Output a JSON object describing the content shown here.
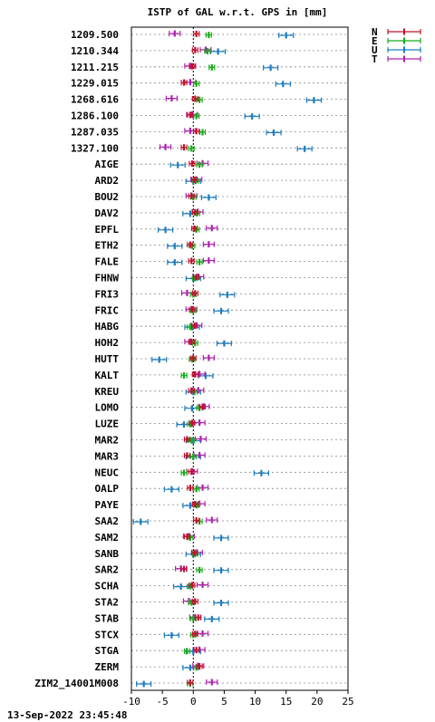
{
  "chart_data": {
    "type": "scatter",
    "title": "ISTP of GAL w.r.t. GPS in [mm]",
    "footer": "13-Sep-2022 23:45:48",
    "xlim": [
      -10,
      25
    ],
    "xticks": [
      -10,
      -5,
      0,
      5,
      10,
      15,
      20,
      25
    ],
    "grid": true,
    "legend_position": "top-right",
    "series": [
      {
        "name": "N",
        "color": "#c0102a"
      },
      {
        "name": "E",
        "color": "#1aaa1a"
      },
      {
        "name": "U",
        "color": "#1a7ec0"
      },
      {
        "name": "T",
        "color": "#b020b0"
      }
    ],
    "stations": [
      {
        "label": "1209.500",
        "N": 0.5,
        "E": 2.5,
        "U": 15.0,
        "T": -3.0
      },
      {
        "label": "1210.344",
        "N": 0.3,
        "E": 2.3,
        "U": 4.0,
        "T": 2.0
      },
      {
        "label": "1211.215",
        "N": -0.2,
        "E": 3.0,
        "U": 12.5,
        "T": -0.5
      },
      {
        "label": "1229.015",
        "N": -1.5,
        "E": 0.5,
        "U": 14.5,
        "T": -0.5
      },
      {
        "label": "1268.616",
        "N": 0.3,
        "E": 1.0,
        "U": 19.5,
        "T": -3.5
      },
      {
        "label": "1286.100",
        "N": -0.5,
        "E": 0.5,
        "U": 9.5,
        "T": -0.2
      },
      {
        "label": "1287.035",
        "N": 0.5,
        "E": 1.5,
        "U": 13.0,
        "T": -0.5
      },
      {
        "label": "1327.100",
        "N": -1.5,
        "E": -0.3,
        "U": 18.0,
        "T": -4.5
      },
      {
        "label": "AIGE",
        "N": -0.2,
        "E": 1.0,
        "U": -2.5,
        "T": 1.5
      },
      {
        "label": "ARD2",
        "N": 0.2,
        "E": 0.4,
        "U": 0.0,
        "T": 0.5
      },
      {
        "label": "BOU2",
        "N": -0.3,
        "E": 0.0,
        "U": 2.5,
        "T": -0.3
      },
      {
        "label": "DAV2",
        "N": 0.3,
        "E": 0.6,
        "U": -0.5,
        "T": 0.7
      },
      {
        "label": "EPFL",
        "N": 0.2,
        "E": 0.5,
        "U": -4.5,
        "T": 3.0
      },
      {
        "label": "ETH2",
        "N": -0.5,
        "E": -0.2,
        "U": -3.0,
        "T": 2.5
      },
      {
        "label": "FALE",
        "N": -0.3,
        "E": 1.0,
        "U": -3.0,
        "T": 2.5
      },
      {
        "label": "FHNW",
        "N": 0.5,
        "E": 0.3,
        "U": 0.0,
        "T": 0.8
      },
      {
        "label": "FRI3",
        "N": 0.3,
        "E": 0.0,
        "U": 5.5,
        "T": -1.0
      },
      {
        "label": "FRIC",
        "N": -0.2,
        "E": 0.0,
        "U": 4.5,
        "T": -0.3
      },
      {
        "label": "HABG",
        "N": 0.2,
        "E": -0.5,
        "U": -0.2,
        "T": 0.5
      },
      {
        "label": "HOH2",
        "N": -0.3,
        "E": 0.3,
        "U": 5.0,
        "T": -0.5
      },
      {
        "label": "HUTT",
        "N": 0.0,
        "E": -0.2,
        "U": -5.5,
        "T": 2.5
      },
      {
        "label": "KALT",
        "N": 0.3,
        "E": -1.5,
        "U": 2.0,
        "T": 1.0
      },
      {
        "label": "KREU",
        "N": -0.3,
        "E": 0.2,
        "U": 0.0,
        "T": 0.8
      },
      {
        "label": "LOMO",
        "N": 1.5,
        "E": 1.0,
        "U": -0.2,
        "T": 1.7
      },
      {
        "label": "LUZE",
        "N": -0.2,
        "E": -0.5,
        "U": -1.5,
        "T": 1.0
      },
      {
        "label": "MAR2",
        "N": -1.0,
        "E": -0.3,
        "U": 0.0,
        "T": 1.2
      },
      {
        "label": "MAR3",
        "N": -1.0,
        "E": 0.0,
        "U": 0.0,
        "T": 1.0
      },
      {
        "label": "NEUC",
        "N": -0.3,
        "E": -1.5,
        "U": 11.0,
        "T": -0.2
      },
      {
        "label": "OALP",
        "N": -0.5,
        "E": 0.5,
        "U": -3.5,
        "T": 1.5
      },
      {
        "label": "PAYE",
        "N": 0.3,
        "E": 0.5,
        "U": -0.5,
        "T": 1.0
      },
      {
        "label": "SAA2",
        "N": 0.5,
        "E": 1.0,
        "U": -8.5,
        "T": 3.0
      },
      {
        "label": "SAM2",
        "N": -1.0,
        "E": -0.5,
        "U": 4.5,
        "T": -0.7
      },
      {
        "label": "SANB",
        "N": 0.2,
        "E": 0.3,
        "U": 0.0,
        "T": 0.6
      },
      {
        "label": "SAR2",
        "N": -1.5,
        "E": 1.0,
        "U": 4.5,
        "T": -2.0
      },
      {
        "label": "SCHA",
        "N": -0.2,
        "E": -0.5,
        "U": -2.0,
        "T": 1.5
      },
      {
        "label": "STA2",
        "N": 0.3,
        "E": -0.3,
        "U": 4.5,
        "T": -0.7
      },
      {
        "label": "STAB",
        "N": 0.8,
        "E": 0.0,
        "U": 3.0,
        "T": 0.3
      },
      {
        "label": "STCX",
        "N": 0.3,
        "E": 0.0,
        "U": -3.5,
        "T": 1.5
      },
      {
        "label": "STGA",
        "N": 0.5,
        "E": -1.0,
        "U": 0.0,
        "T": 1.0
      },
      {
        "label": "ZERM",
        "N": 1.0,
        "E": 0.5,
        "U": -0.5,
        "T": 0.8
      },
      {
        "label": "ZIM2_14001M008",
        "N": -0.5,
        "E": -0.5,
        "U": -8.0,
        "T": 3.0
      }
    ]
  }
}
